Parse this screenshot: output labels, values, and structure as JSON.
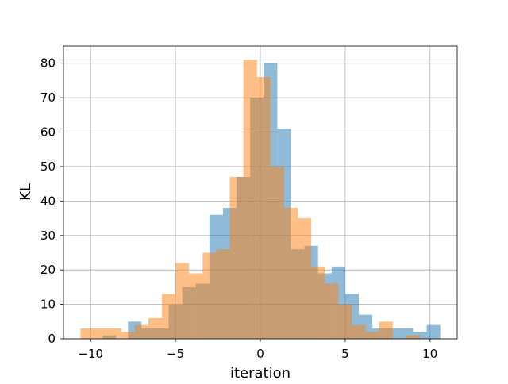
{
  "chart_data": {
    "type": "bar",
    "title": "",
    "xlabel": "iteration",
    "ylabel": "KL",
    "xlim": [
      -11.6,
      11.6
    ],
    "ylim": [
      0,
      85
    ],
    "xticks": [
      -10,
      -5,
      0,
      5,
      10
    ],
    "yticks": [
      0,
      10,
      20,
      30,
      40,
      50,
      60,
      70,
      80
    ],
    "grid": true,
    "legend": "none",
    "series": [
      {
        "name": "",
        "color": "#1f77b4",
        "opacity": 0.5,
        "bins": [
          {
            "x0": -9.3,
            "x1": -8.5,
            "value": 1
          },
          {
            "x0": -7.8,
            "x1": -7.0,
            "value": 5
          },
          {
            "x0": -7.0,
            "x1": -6.2,
            "value": 3
          },
          {
            "x0": -6.2,
            "x1": -5.4,
            "value": 3
          },
          {
            "x0": -5.4,
            "x1": -4.6,
            "value": 10
          },
          {
            "x0": -4.6,
            "x1": -3.8,
            "value": 15
          },
          {
            "x0": -3.8,
            "x1": -3.0,
            "value": 16
          },
          {
            "x0": -3.0,
            "x1": -2.2,
            "value": 36
          },
          {
            "x0": -2.2,
            "x1": -1.4,
            "value": 38
          },
          {
            "x0": -1.4,
            "x1": -0.6,
            "value": 47
          },
          {
            "x0": -0.6,
            "x1": 0.2,
            "value": 70
          },
          {
            "x0": 0.2,
            "x1": 1.0,
            "value": 80
          },
          {
            "x0": 1.0,
            "x1": 1.8,
            "value": 61
          },
          {
            "x0": 1.8,
            "x1": 2.6,
            "value": 26
          },
          {
            "x0": 2.6,
            "x1": 3.4,
            "value": 27
          },
          {
            "x0": 3.4,
            "x1": 4.2,
            "value": 19
          },
          {
            "x0": 4.2,
            "x1": 5.0,
            "value": 21
          },
          {
            "x0": 5.0,
            "x1": 5.8,
            "value": 13
          },
          {
            "x0": 5.8,
            "x1": 6.6,
            "value": 7
          },
          {
            "x0": 6.6,
            "x1": 7.4,
            "value": 3
          },
          {
            "x0": 7.4,
            "x1": 8.2,
            "value": 3
          },
          {
            "x0": 8.2,
            "x1": 9.0,
            "value": 3
          },
          {
            "x0": 9.0,
            "x1": 9.8,
            "value": 2
          },
          {
            "x0": 9.8,
            "x1": 10.6,
            "value": 4
          }
        ]
      },
      {
        "name": "",
        "color": "#ff7f0e",
        "opacity": 0.5,
        "bins": [
          {
            "x0": -10.6,
            "x1": -9.8,
            "value": 3
          },
          {
            "x0": -9.8,
            "x1": -9.0,
            "value": 3
          },
          {
            "x0": -9.0,
            "x1": -8.2,
            "value": 3
          },
          {
            "x0": -8.2,
            "x1": -7.4,
            "value": 2
          },
          {
            "x0": -7.4,
            "x1": -6.6,
            "value": 4
          },
          {
            "x0": -6.6,
            "x1": -5.8,
            "value": 6
          },
          {
            "x0": -5.8,
            "x1": -5.0,
            "value": 13
          },
          {
            "x0": -5.0,
            "x1": -4.2,
            "value": 22
          },
          {
            "x0": -4.2,
            "x1": -3.4,
            "value": 19
          },
          {
            "x0": -3.4,
            "x1": -2.6,
            "value": 25
          },
          {
            "x0": -2.6,
            "x1": -1.8,
            "value": 26
          },
          {
            "x0": -1.8,
            "x1": -1.0,
            "value": 47
          },
          {
            "x0": -1.0,
            "x1": -0.2,
            "value": 81
          },
          {
            "x0": -0.2,
            "x1": 0.6,
            "value": 76
          },
          {
            "x0": 0.6,
            "x1": 1.4,
            "value": 50
          },
          {
            "x0": 1.4,
            "x1": 2.2,
            "value": 38
          },
          {
            "x0": 2.2,
            "x1": 3.0,
            "value": 35
          },
          {
            "x0": 3.0,
            "x1": 3.8,
            "value": 21
          },
          {
            "x0": 3.8,
            "x1": 4.6,
            "value": 16
          },
          {
            "x0": 4.6,
            "x1": 5.4,
            "value": 10
          },
          {
            "x0": 5.4,
            "x1": 6.2,
            "value": 4
          },
          {
            "x0": 6.2,
            "x1": 7.0,
            "value": 2
          },
          {
            "x0": 7.0,
            "x1": 7.8,
            "value": 5
          },
          {
            "x0": 7.8,
            "x1": 8.6,
            "value": 0
          },
          {
            "x0": 8.6,
            "x1": 9.4,
            "value": 1
          },
          {
            "x0": 9.4,
            "x1": 10.2,
            "value": 0
          }
        ]
      }
    ],
    "colors": {
      "grid": "#b0b0b0",
      "axis": "#000000",
      "text": "#000000"
    }
  }
}
